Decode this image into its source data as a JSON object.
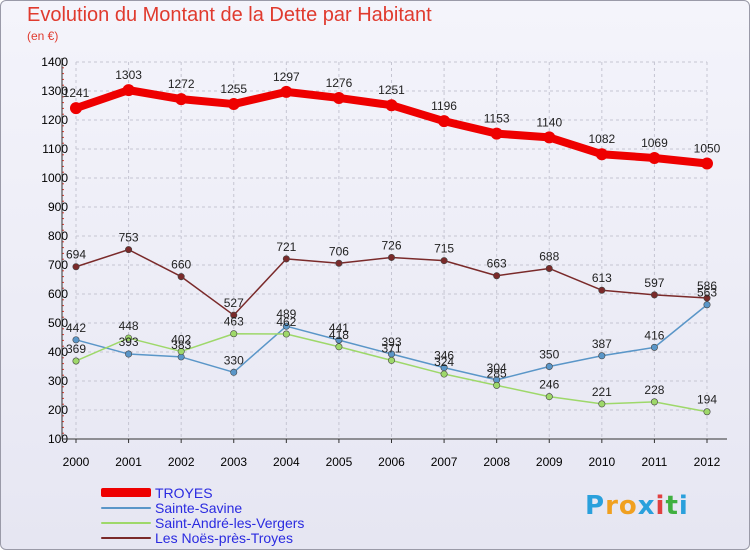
{
  "title": "Evolution du Montant de la Dette par Habitant",
  "unit": "(en €)",
  "logo": {
    "text": "Proxiti",
    "letters": [
      "P",
      "r",
      "o",
      "x",
      "i",
      "t",
      "i"
    ],
    "colors": [
      "#2aa0dc",
      "#f0a020",
      "#f0a020",
      "#2aa0dc",
      "#e04040",
      "#40b040",
      "#2aa0dc"
    ]
  },
  "chart_data": {
    "type": "line",
    "title": "Evolution du Montant de la Dette par Habitant",
    "ylabel": "(en €)",
    "xlabel": "",
    "x": [
      "2000",
      "2001",
      "2002",
      "2003",
      "2004",
      "2005",
      "2006",
      "2007",
      "2008",
      "2009",
      "2010",
      "2011",
      "2012"
    ],
    "ylim": [
      100,
      1400
    ],
    "yticks": [
      "100",
      "200",
      "300",
      "400",
      "500",
      "600",
      "700",
      "800",
      "900",
      "1000",
      "1100",
      "1200",
      "1300",
      "1400"
    ],
    "grid": true,
    "legend_position": "bottom-left",
    "series": [
      {
        "name": "TROYES",
        "color": "#ee0000",
        "values": [
          1241,
          1303,
          1272,
          1255,
          1297,
          1276,
          1251,
          1196,
          1153,
          1140,
          1082,
          1069,
          1050
        ],
        "labels": [
          "1241",
          "1303",
          "1272",
          "1255",
          "1297",
          "1276",
          "1251",
          "1196",
          "1153",
          "1140",
          "1082",
          "1069",
          "1050"
        ]
      },
      {
        "name": "Sainte-Savine",
        "color": "#5a96c8",
        "values": [
          442,
          393,
          383,
          330,
          489,
          441,
          393,
          346,
          304,
          350,
          387,
          416,
          563
        ],
        "labels": [
          "442",
          "393",
          "383",
          "330",
          "489",
          "441",
          "393",
          "346",
          "304",
          "350",
          "387",
          "416",
          "563"
        ]
      },
      {
        "name": "Saint-André-les-Vergers",
        "color": "#9ed86a",
        "values": [
          369,
          448,
          402,
          463,
          462,
          418,
          371,
          324,
          285,
          246,
          221,
          228,
          194
        ],
        "labels": [
          "369",
          "448",
          "402",
          "463",
          "462",
          "418",
          "371",
          "324",
          "285",
          "246",
          "221",
          "228",
          "194"
        ]
      },
      {
        "name": "Les Noës-près-Troyes",
        "color": "#7a2a2a",
        "values": [
          694,
          753,
          660,
          527,
          721,
          706,
          726,
          715,
          663,
          688,
          613,
          597,
          586
        ],
        "labels": [
          "694",
          "753",
          "660",
          "527",
          "721",
          "706",
          "726",
          "715",
          "663",
          "688",
          "613",
          "597",
          "586"
        ]
      }
    ]
  }
}
